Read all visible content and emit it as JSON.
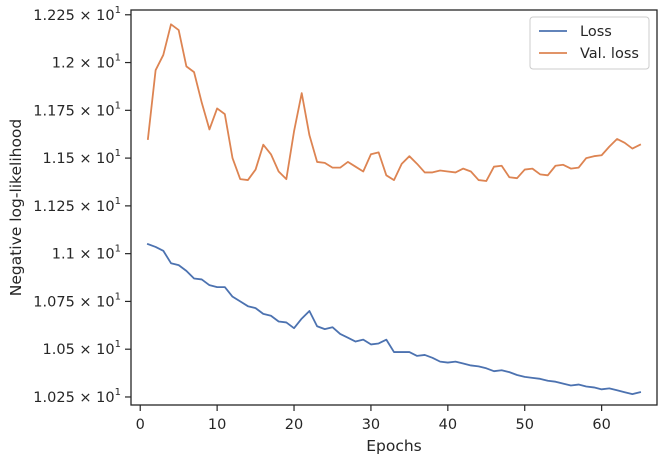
{
  "chart_data": {
    "type": "line",
    "title": "",
    "xlabel": "Epochs",
    "ylabel": "Negative log-likelihood",
    "xlim": [
      -1.2,
      67.2
    ],
    "ylim": [
      10.208,
      12.275
    ],
    "x_ticks": [
      0,
      10,
      20,
      30,
      40,
      50,
      60
    ],
    "x_tick_labels": [
      "0",
      "10",
      "20",
      "30",
      "40",
      "50",
      "60"
    ],
    "y_ticks": [
      10.25,
      10.5,
      10.75,
      11.0,
      11.25,
      11.5,
      11.75,
      12.0,
      12.25
    ],
    "y_tick_labels": [
      {
        "mantissa": "1.025",
        "exp": "1"
      },
      {
        "mantissa": "1.05",
        "exp": "1"
      },
      {
        "mantissa": "1.075",
        "exp": "1"
      },
      {
        "mantissa": "1.1",
        "exp": "1"
      },
      {
        "mantissa": "1.125",
        "exp": "1"
      },
      {
        "mantissa": "1.15",
        "exp": "1"
      },
      {
        "mantissa": "1.175",
        "exp": "1"
      },
      {
        "mantissa": "1.2",
        "exp": "1"
      },
      {
        "mantissa": "1.225",
        "exp": "1"
      }
    ],
    "times_symbol": "×",
    "tick_base": "10",
    "grid": false,
    "legend_position": "top-right",
    "series": [
      {
        "name": "Loss",
        "color": "#4c72b0",
        "x": [
          1,
          2,
          3,
          4,
          5,
          6,
          7,
          8,
          9,
          10,
          11,
          12,
          13,
          14,
          15,
          16,
          17,
          18,
          19,
          20,
          21,
          22,
          23,
          24,
          25,
          26,
          27,
          28,
          29,
          30,
          31,
          32,
          33,
          34,
          35,
          36,
          37,
          38,
          39,
          40,
          41,
          42,
          43,
          44,
          45,
          46,
          47,
          48,
          49,
          50,
          51,
          52,
          53,
          54,
          55,
          56,
          57,
          58,
          59,
          60,
          61,
          62,
          63,
          64,
          65
        ],
        "values": [
          11.05,
          11.035,
          11.015,
          10.95,
          10.94,
          10.91,
          10.87,
          10.865,
          10.835,
          10.825,
          10.825,
          10.775,
          10.75,
          10.725,
          10.715,
          10.685,
          10.675,
          10.645,
          10.64,
          10.61,
          10.66,
          10.7,
          10.62,
          10.605,
          10.615,
          10.58,
          10.56,
          10.54,
          10.55,
          10.525,
          10.53,
          10.55,
          10.485,
          10.485,
          10.485,
          10.465,
          10.47,
          10.455,
          10.435,
          10.43,
          10.435,
          10.425,
          10.415,
          10.41,
          10.4,
          10.385,
          10.39,
          10.38,
          10.365,
          10.355,
          10.35,
          10.345,
          10.335,
          10.33,
          10.32,
          10.31,
          10.315,
          10.305,
          10.3,
          10.29,
          10.295,
          10.285,
          10.275,
          10.265,
          10.275
        ]
      },
      {
        "name": "Val. loss",
        "color": "#dd8452",
        "x": [
          1,
          2,
          3,
          4,
          5,
          6,
          7,
          8,
          9,
          10,
          11,
          12,
          13,
          14,
          15,
          16,
          17,
          18,
          19,
          20,
          21,
          22,
          23,
          24,
          25,
          26,
          27,
          28,
          29,
          30,
          31,
          32,
          33,
          34,
          35,
          36,
          37,
          38,
          39,
          40,
          41,
          42,
          43,
          44,
          45,
          46,
          47,
          48,
          49,
          50,
          51,
          52,
          53,
          54,
          55,
          56,
          57,
          58,
          59,
          60,
          61,
          62,
          63,
          64,
          65
        ],
        "values": [
          11.6,
          11.96,
          12.04,
          12.2,
          12.17,
          11.98,
          11.95,
          11.79,
          11.65,
          11.76,
          11.73,
          11.5,
          11.39,
          11.385,
          11.44,
          11.57,
          11.52,
          11.43,
          11.39,
          11.64,
          11.84,
          11.62,
          11.48,
          11.475,
          11.45,
          11.45,
          11.48,
          11.455,
          11.43,
          11.52,
          11.53,
          11.41,
          11.385,
          11.47,
          11.51,
          11.47,
          11.425,
          11.425,
          11.435,
          11.43,
          11.425,
          11.445,
          11.43,
          11.385,
          11.38,
          11.455,
          11.46,
          11.4,
          11.395,
          11.44,
          11.445,
          11.415,
          11.41,
          11.46,
          11.465,
          11.445,
          11.45,
          11.5,
          11.51,
          11.515,
          11.56,
          11.6,
          11.58,
          11.55,
          11.57
        ]
      }
    ]
  }
}
